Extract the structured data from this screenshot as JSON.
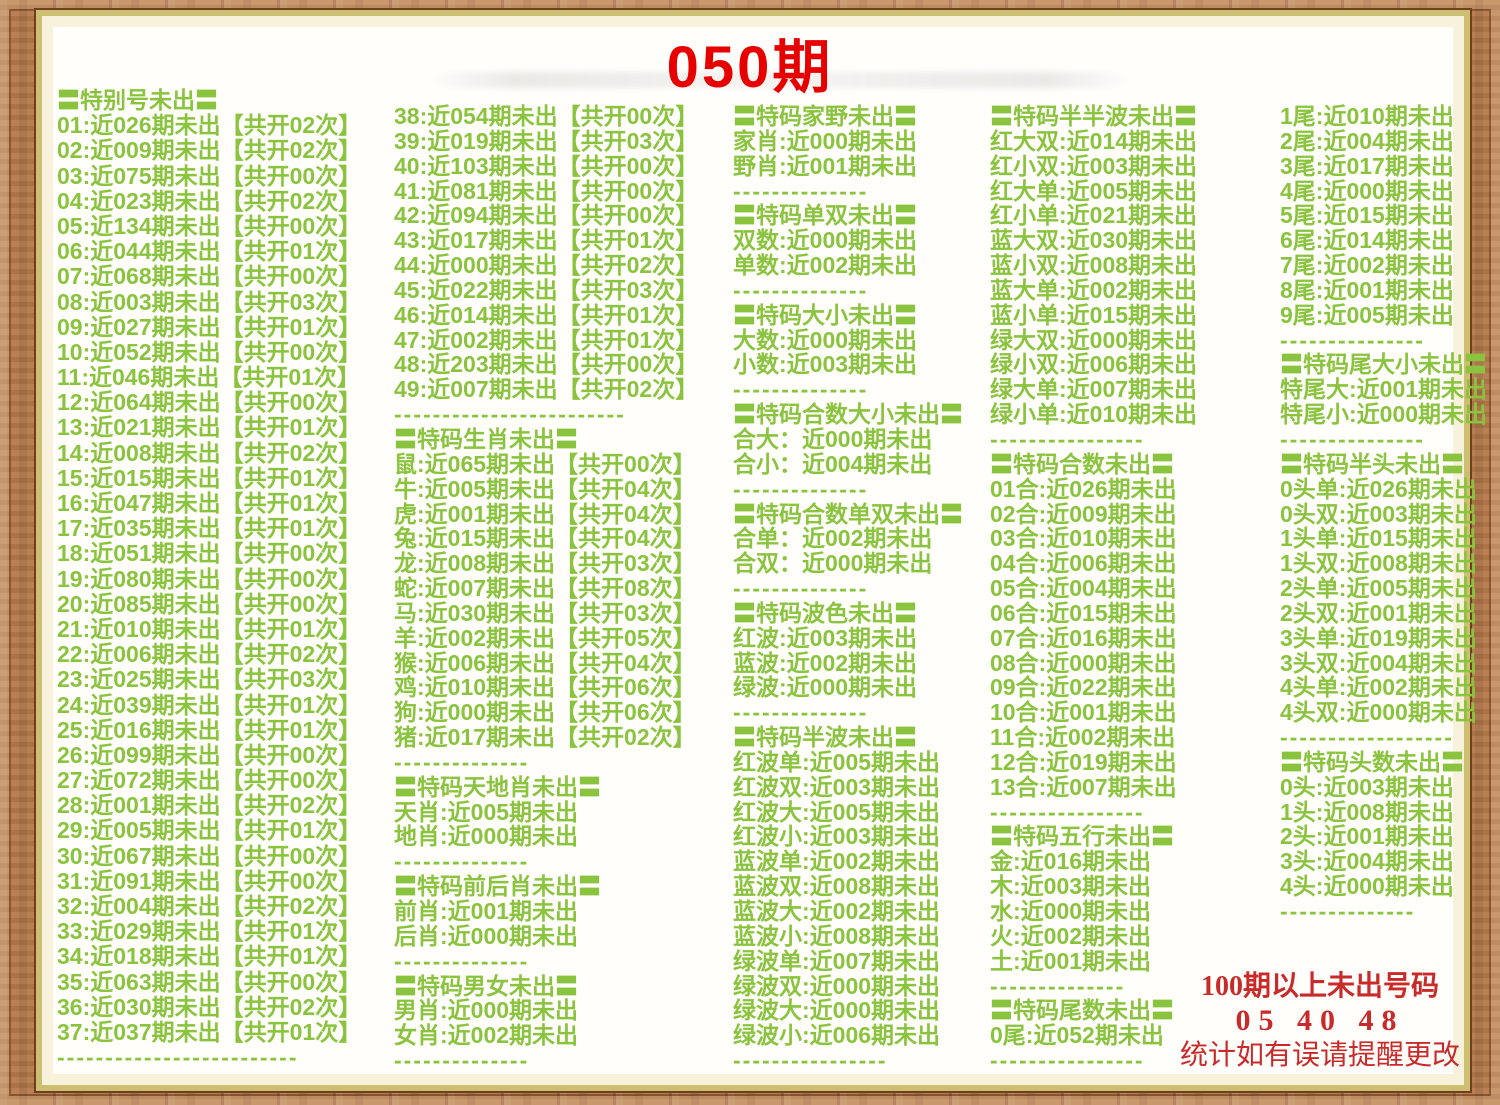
{
  "title": "050期",
  "colors": {
    "green": "#8ac43e",
    "title_red": "#e60000",
    "footer_red": "#c92b2b"
  },
  "footer": {
    "line1": "100期以上未出号码",
    "line2": "05 40 48",
    "line3": "统计如有误请提醒更改"
  },
  "columns": [
    {
      "name": "special-numbers-01-37",
      "items": [
        {
          "t": "h",
          "x": "〓特别号未出〓"
        },
        {
          "t": "l",
          "x": "01:近026期未出【共开02次】"
        },
        {
          "t": "l",
          "x": "02:近009期未出【共开02次】"
        },
        {
          "t": "l",
          "x": "03:近075期未出【共开00次】"
        },
        {
          "t": "l",
          "x": "04:近023期未出【共开02次】"
        },
        {
          "t": "l",
          "x": "05:近134期未出【共开00次】"
        },
        {
          "t": "l",
          "x": "06:近044期未出【共开01次】"
        },
        {
          "t": "l",
          "x": "07:近068期未出【共开00次】"
        },
        {
          "t": "l",
          "x": "08:近003期未出【共开03次】"
        },
        {
          "t": "l",
          "x": "09:近027期未出【共开01次】"
        },
        {
          "t": "l",
          "x": "10:近052期未出【共开00次】"
        },
        {
          "t": "l",
          "x": "11:近046期未出【共开01次】"
        },
        {
          "t": "l",
          "x": "12:近064期未出【共开00次】"
        },
        {
          "t": "l",
          "x": "13:近021期未出【共开01次】"
        },
        {
          "t": "l",
          "x": "14:近008期未出【共开02次】"
        },
        {
          "t": "l",
          "x": "15:近015期未出【共开01次】"
        },
        {
          "t": "l",
          "x": "16:近047期未出【共开01次】"
        },
        {
          "t": "l",
          "x": "17:近035期未出【共开01次】"
        },
        {
          "t": "l",
          "x": "18:近051期未出【共开00次】"
        },
        {
          "t": "l",
          "x": "19:近080期未出【共开00次】"
        },
        {
          "t": "l",
          "x": "20:近085期未出【共开00次】"
        },
        {
          "t": "l",
          "x": "21:近010期未出【共开01次】"
        },
        {
          "t": "l",
          "x": "22:近006期未出【共开02次】"
        },
        {
          "t": "l",
          "x": "23:近025期未出【共开03次】"
        },
        {
          "t": "l",
          "x": "24:近039期未出【共开01次】"
        },
        {
          "t": "l",
          "x": "25:近016期未出【共开01次】"
        },
        {
          "t": "l",
          "x": "26:近099期未出【共开00次】"
        },
        {
          "t": "l",
          "x": "27:近072期未出【共开00次】"
        },
        {
          "t": "l",
          "x": "28:近001期未出【共开02次】"
        },
        {
          "t": "l",
          "x": "29:近005期未出【共开01次】"
        },
        {
          "t": "l",
          "x": "30:近067期未出【共开00次】"
        },
        {
          "t": "l",
          "x": "31:近091期未出【共开00次】"
        },
        {
          "t": "l",
          "x": "32:近004期未出【共开02次】"
        },
        {
          "t": "l",
          "x": "33:近029期未出【共开01次】"
        },
        {
          "t": "l",
          "x": "34:近018期未出【共开01次】"
        },
        {
          "t": "l",
          "x": "35:近063期未出【共开00次】"
        },
        {
          "t": "l",
          "x": "36:近030期未出【共开02次】"
        },
        {
          "t": "l",
          "x": "37:近037期未出【共开01次】"
        },
        {
          "t": "d",
          "x": "-------------------------"
        }
      ]
    },
    {
      "name": "special-numbers-38-49-and-zodiac",
      "items": [
        {
          "t": "l",
          "x": "38:近054期未出【共开00次】"
        },
        {
          "t": "l",
          "x": "39:近019期未出【共开03次】"
        },
        {
          "t": "l",
          "x": "40:近103期未出【共开00次】"
        },
        {
          "t": "l",
          "x": "41:近081期未出【共开00次】"
        },
        {
          "t": "l",
          "x": "42:近094期未出【共开00次】"
        },
        {
          "t": "l",
          "x": "43:近017期未出【共开01次】"
        },
        {
          "t": "l",
          "x": "44:近000期未出【共开02次】"
        },
        {
          "t": "l",
          "x": "45:近022期未出【共开03次】"
        },
        {
          "t": "l",
          "x": "46:近014期未出【共开01次】"
        },
        {
          "t": "l",
          "x": "47:近002期未出【共开01次】"
        },
        {
          "t": "l",
          "x": "48:近203期未出【共开00次】"
        },
        {
          "t": "l",
          "x": "49:近007期未出【共开02次】"
        },
        {
          "t": "d",
          "x": "------------------------"
        },
        {
          "t": "h",
          "x": "〓特码生肖未出〓"
        },
        {
          "t": "l",
          "x": "鼠:近065期未出【共开00次】"
        },
        {
          "t": "l",
          "x": "牛:近005期未出【共开04次】"
        },
        {
          "t": "l",
          "x": "虎:近001期未出【共开04次】"
        },
        {
          "t": "l",
          "x": "兔:近015期未出【共开04次】"
        },
        {
          "t": "l",
          "x": "龙:近008期未出【共开03次】"
        },
        {
          "t": "l",
          "x": "蛇:近007期未出【共开08次】"
        },
        {
          "t": "l",
          "x": "马:近030期未出【共开03次】"
        },
        {
          "t": "l",
          "x": "羊:近002期未出【共开05次】"
        },
        {
          "t": "l",
          "x": "猴:近006期未出【共开04次】"
        },
        {
          "t": "l",
          "x": "鸡:近010期未出【共开06次】"
        },
        {
          "t": "l",
          "x": "狗:近000期未出【共开06次】"
        },
        {
          "t": "l",
          "x": "猪:近017期未出【共开02次】"
        },
        {
          "t": "d",
          "x": "--------------"
        },
        {
          "t": "h",
          "x": "〓特码天地肖未出〓"
        },
        {
          "t": "l",
          "x": "天肖:近005期未出"
        },
        {
          "t": "l",
          "x": "地肖:近000期未出"
        },
        {
          "t": "d",
          "x": "--------------"
        },
        {
          "t": "h",
          "x": "〓特码前后肖未出〓"
        },
        {
          "t": "l",
          "x": "前肖:近001期未出"
        },
        {
          "t": "l",
          "x": "后肖:近000期未出"
        },
        {
          "t": "d",
          "x": "--------------"
        },
        {
          "t": "h",
          "x": "〓特码男女未出〓"
        },
        {
          "t": "l",
          "x": "男肖:近000期未出"
        },
        {
          "t": "l",
          "x": "女肖:近002期未出"
        },
        {
          "t": "d",
          "x": "--------------"
        }
      ]
    },
    {
      "name": "jiaye-danshuang-daxiao-bose-banbo",
      "items": [
        {
          "t": "h",
          "x": "〓特码家野未出〓"
        },
        {
          "t": "l",
          "x": "家肖:近000期未出"
        },
        {
          "t": "l",
          "x": "野肖:近001期未出"
        },
        {
          "t": "d",
          "x": "--------------"
        },
        {
          "t": "h",
          "x": "〓特码单双未出〓"
        },
        {
          "t": "l",
          "x": "双数:近000期未出"
        },
        {
          "t": "l",
          "x": "单数:近002期未出"
        },
        {
          "t": "d",
          "x": "--------------"
        },
        {
          "t": "h",
          "x": "〓特码大小未出〓"
        },
        {
          "t": "l",
          "x": "大数:近000期未出"
        },
        {
          "t": "l",
          "x": "小数:近003期未出"
        },
        {
          "t": "d",
          "x": "--------------"
        },
        {
          "t": "h",
          "x": "〓特码合数大小未出〓"
        },
        {
          "t": "l",
          "x": "合大：近000期未出"
        },
        {
          "t": "l",
          "x": "合小：近004期未出"
        },
        {
          "t": "d",
          "x": "--------------"
        },
        {
          "t": "h",
          "x": "〓特码合数单双未出〓"
        },
        {
          "t": "l",
          "x": "合单：近002期未出"
        },
        {
          "t": "l",
          "x": "合双：近000期未出"
        },
        {
          "t": "d",
          "x": "--------------"
        },
        {
          "t": "h",
          "x": "〓特码波色未出〓"
        },
        {
          "t": "l",
          "x": "红波:近003期未出"
        },
        {
          "t": "l",
          "x": "蓝波:近002期未出"
        },
        {
          "t": "l",
          "x": "绿波:近000期未出"
        },
        {
          "t": "d",
          "x": "--------------"
        },
        {
          "t": "h",
          "x": "〓特码半波未出〓"
        },
        {
          "t": "l",
          "x": "红波单:近005期未出"
        },
        {
          "t": "l",
          "x": "红波双:近003期未出"
        },
        {
          "t": "l",
          "x": "红波大:近005期未出"
        },
        {
          "t": "l",
          "x": "红波小:近003期未出"
        },
        {
          "t": "l",
          "x": "蓝波单:近002期未出"
        },
        {
          "t": "l",
          "x": "蓝波双:近008期未出"
        },
        {
          "t": "l",
          "x": "蓝波大:近002期未出"
        },
        {
          "t": "l",
          "x": "蓝波小:近008期未出"
        },
        {
          "t": "l",
          "x": "绿波单:近007期未出"
        },
        {
          "t": "l",
          "x": "绿波双:近000期未出"
        },
        {
          "t": "l",
          "x": "绿波大:近000期未出"
        },
        {
          "t": "l",
          "x": "绿波小:近006期未出"
        },
        {
          "t": "d",
          "x": "----------------"
        }
      ]
    },
    {
      "name": "banbanbo-heshu-wuxing-weishu",
      "items": [
        {
          "t": "h",
          "x": "〓特码半半波未出〓"
        },
        {
          "t": "l",
          "x": "红大双:近014期未出"
        },
        {
          "t": "l",
          "x": "红小双:近003期未出"
        },
        {
          "t": "l",
          "x": "红大单:近005期未出"
        },
        {
          "t": "l",
          "x": "红小单:近021期未出"
        },
        {
          "t": "l",
          "x": "蓝大双:近030期未出"
        },
        {
          "t": "l",
          "x": "蓝小双:近008期未出"
        },
        {
          "t": "l",
          "x": "蓝大单:近002期未出"
        },
        {
          "t": "l",
          "x": "蓝小单:近015期未出"
        },
        {
          "t": "l",
          "x": "绿大双:近000期未出"
        },
        {
          "t": "l",
          "x": "绿小双:近006期未出"
        },
        {
          "t": "l",
          "x": "绿大单:近007期未出"
        },
        {
          "t": "l",
          "x": "绿小单:近010期未出"
        },
        {
          "t": "d",
          "x": "----------------"
        },
        {
          "t": "h",
          "x": "〓特码合数未出〓"
        },
        {
          "t": "l",
          "x": "01合:近026期未出"
        },
        {
          "t": "l",
          "x": "02合:近009期未出"
        },
        {
          "t": "l",
          "x": "03合:近010期未出"
        },
        {
          "t": "l",
          "x": "04合:近006期未出"
        },
        {
          "t": "l",
          "x": "05合:近004期未出"
        },
        {
          "t": "l",
          "x": "06合:近015期未出"
        },
        {
          "t": "l",
          "x": "07合:近016期未出"
        },
        {
          "t": "l",
          "x": "08合:近000期未出"
        },
        {
          "t": "l",
          "x": "09合:近022期未出"
        },
        {
          "t": "l",
          "x": "10合:近001期未出"
        },
        {
          "t": "l",
          "x": "11合:近002期未出"
        },
        {
          "t": "l",
          "x": "12合:近019期未出"
        },
        {
          "t": "l",
          "x": "13合:近007期未出"
        },
        {
          "t": "d",
          "x": "----------------"
        },
        {
          "t": "h",
          "x": "〓特码五行未出〓"
        },
        {
          "t": "l",
          "x": "金:近016期未出"
        },
        {
          "t": "l",
          "x": "木:近003期未出"
        },
        {
          "t": "l",
          "x": "水:近000期未出"
        },
        {
          "t": "l",
          "x": "火:近002期未出"
        },
        {
          "t": "l",
          "x": "土:近001期未出"
        },
        {
          "t": "d",
          "x": "--------------"
        },
        {
          "t": "h",
          "x": "〓特码尾数未出〓"
        },
        {
          "t": "l",
          "x": "0尾:近052期未出"
        },
        {
          "t": "d",
          "x": "----------------"
        }
      ]
    },
    {
      "name": "wei-weidaxiao-bantou-toushu",
      "items": [
        {
          "t": "l",
          "x": "1尾:近010期未出"
        },
        {
          "t": "l",
          "x": "2尾:近004期未出"
        },
        {
          "t": "l",
          "x": "3尾:近017期未出"
        },
        {
          "t": "l",
          "x": "4尾:近000期未出"
        },
        {
          "t": "l",
          "x": "5尾:近015期未出"
        },
        {
          "t": "l",
          "x": "6尾:近014期未出"
        },
        {
          "t": "l",
          "x": "7尾:近002期未出"
        },
        {
          "t": "l",
          "x": "8尾:近001期未出"
        },
        {
          "t": "l",
          "x": "9尾:近005期未出"
        },
        {
          "t": "d",
          "x": "---------------"
        },
        {
          "t": "h",
          "x": "〓特码尾大小未出〓"
        },
        {
          "t": "l",
          "x": "特尾大:近001期未出"
        },
        {
          "t": "l",
          "x": "特尾小:近000期未出"
        },
        {
          "t": "d",
          "x": "---------------"
        },
        {
          "t": "h",
          "x": "〓特码半头未出〓"
        },
        {
          "t": "l",
          "x": "0头单:近026期未出"
        },
        {
          "t": "l",
          "x": "0头双:近003期未出"
        },
        {
          "t": "l",
          "x": "1头单:近015期未出"
        },
        {
          "t": "l",
          "x": "1头双:近008期未出"
        },
        {
          "t": "l",
          "x": "2头单:近005期未出"
        },
        {
          "t": "l",
          "x": "2头双:近001期未出"
        },
        {
          "t": "l",
          "x": "3头单:近019期未出"
        },
        {
          "t": "l",
          "x": "3头双:近004期未出"
        },
        {
          "t": "l",
          "x": "4头单:近002期未出"
        },
        {
          "t": "l",
          "x": "4头双:近000期未出"
        },
        {
          "t": "d",
          "x": "------------------"
        },
        {
          "t": "h",
          "x": "〓特码头数未出〓"
        },
        {
          "t": "l",
          "x": "0头:近003期未出"
        },
        {
          "t": "l",
          "x": "1头:近008期未出"
        },
        {
          "t": "l",
          "x": "2头:近001期未出"
        },
        {
          "t": "l",
          "x": "3头:近004期未出"
        },
        {
          "t": "l",
          "x": "4头:近000期未出"
        },
        {
          "t": "d",
          "x": "--------------"
        }
      ]
    }
  ]
}
